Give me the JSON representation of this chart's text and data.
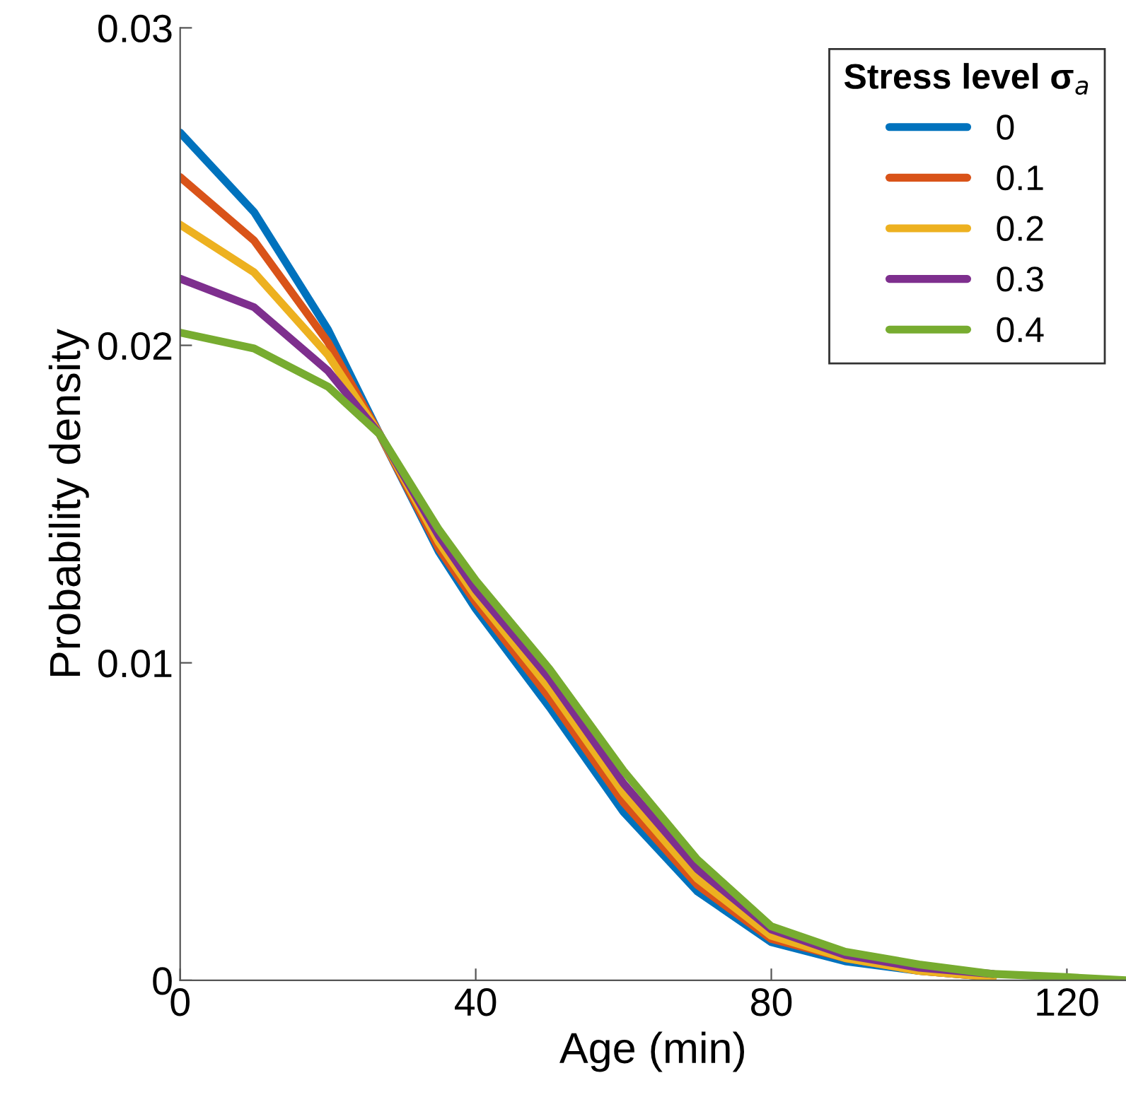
{
  "chart_data": {
    "type": "line",
    "xlabel": "Age (min)",
    "ylabel": "Probability density",
    "legend_title": "Stress level σ$_{a}$",
    "legend": "top right",
    "grid": false,
    "line_style": "solid",
    "marker": "none",
    "x": [
      0,
      10,
      20,
      27,
      35,
      40,
      50,
      60,
      70,
      80,
      90,
      100,
      110,
      120,
      128
    ],
    "xlim": [
      0,
      128
    ],
    "xticks": [
      0,
      40,
      80,
      120
    ],
    "ylim": [
      0,
      0.03
    ],
    "yticks": [
      0,
      0.01,
      0.02,
      0.03
    ],
    "series": [
      {
        "name": "0",
        "color": "#0072bd",
        "values": [
          0.0267,
          0.0242,
          0.0205,
          0.0172,
          0.0135,
          0.0117,
          0.0086,
          0.0053,
          0.0028,
          0.0012,
          0.0006,
          0.0003,
          0.0001,
          null,
          null
        ]
      },
      {
        "name": "0.1",
        "color": "#d95319",
        "values": [
          0.0253,
          0.0233,
          0.0201,
          0.0172,
          0.0136,
          0.0119,
          0.0089,
          0.0056,
          0.003,
          0.0013,
          0.0007,
          0.0003,
          0.0001,
          null,
          null
        ]
      },
      {
        "name": "0.2",
        "color": "#edb120",
        "values": [
          0.0238,
          0.0223,
          0.0197,
          0.0172,
          0.0138,
          0.0121,
          0.0092,
          0.0059,
          0.0032,
          0.0014,
          0.0007,
          0.0003,
          0.0001,
          null,
          null
        ]
      },
      {
        "name": "0.3",
        "color": "#7e2f8e",
        "values": [
          0.0221,
          0.0212,
          0.0192,
          0.0172,
          0.014,
          0.0123,
          0.0095,
          0.0062,
          0.0035,
          0.0016,
          0.0008,
          0.0004,
          0.0002,
          null,
          null
        ]
      },
      {
        "name": "0.4",
        "color": "#77ac30",
        "values": [
          0.0204,
          0.0199,
          0.0187,
          0.0172,
          0.0142,
          0.0126,
          0.0098,
          0.0066,
          0.0038,
          0.0017,
          0.0009,
          0.0005,
          0.0002,
          0.0001,
          0
        ]
      }
    ]
  }
}
